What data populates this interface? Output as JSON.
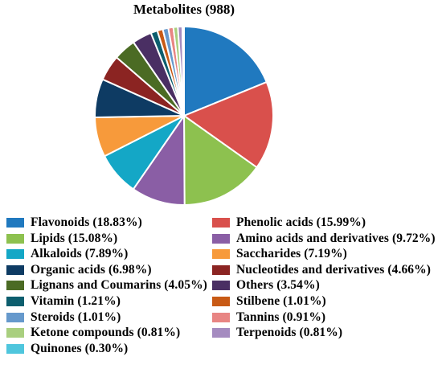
{
  "chart_data": {
    "type": "pie",
    "title": "Metabolites (988)",
    "slices": [
      {
        "label": "Flavonoids (18.83%)",
        "value": 18.83,
        "color": "#2079bf"
      },
      {
        "label": "Phenolic acids (15.99%)",
        "value": 15.99,
        "color": "#d9504c"
      },
      {
        "label": "Lipids (15.08%)",
        "value": 15.08,
        "color": "#8dc14f"
      },
      {
        "label": "Amino acids and derivatives (9.72%)",
        "value": 9.72,
        "color": "#8a5ea5"
      },
      {
        "label": "Alkaloids (7.89%)",
        "value": 7.89,
        "color": "#14a7c6"
      },
      {
        "label": "Saccharides (7.19%)",
        "value": 7.19,
        "color": "#f79a3b"
      },
      {
        "label": "Organic acids (6.98%)",
        "value": 6.98,
        "color": "#0e3b63"
      },
      {
        "label": "Nucleotides and derivatives (4.66%)",
        "value": 4.66,
        "color": "#8b2422"
      },
      {
        "label": "Lignans and Coumarins (4.05%)",
        "value": 4.05,
        "color": "#4b6b24"
      },
      {
        "label": "Others (3.54%)",
        "value": 3.54,
        "color": "#4a2f63"
      },
      {
        "label": "Vitamin (1.21%)",
        "value": 1.21,
        "color": "#0d5e6e"
      },
      {
        "label": "Stilbene (1.01%)",
        "value": 1.01,
        "color": "#c85a15"
      },
      {
        "label": "Steroids (1.01%)",
        "value": 1.01,
        "color": "#6699cc"
      },
      {
        "label": "Tannins (0.91%)",
        "value": 0.91,
        "color": "#e88583"
      },
      {
        "label": "Ketone compounds (0.81%)",
        "value": 0.81,
        "color": "#a9cf7f"
      },
      {
        "label": "Terpenoids (0.81%)",
        "value": 0.81,
        "color": "#a58bc0"
      },
      {
        "label": "Quinones (0.30%)",
        "value": 0.3,
        "color": "#4fc6dd"
      }
    ],
    "legend_placement": "bottom",
    "legend_columns": 2
  }
}
